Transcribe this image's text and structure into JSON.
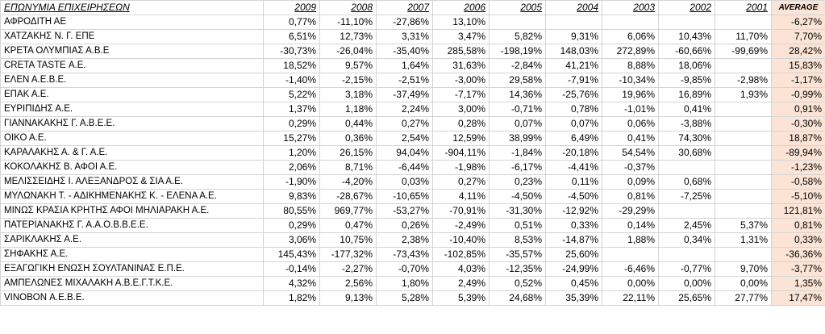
{
  "header": {
    "name": "ΕΠΩΝΥΜΙΑ ΕΠΙΧΕΙΡΗΣΕΩΝ",
    "years": [
      "2009",
      "2008",
      "2007",
      "2006",
      "2005",
      "2004",
      "2003",
      "2002",
      "2001"
    ],
    "average": "AVERAGE"
  },
  "rows": [
    {
      "name": "ΑΦΡΟΔΙΤΗ ΑΕ",
      "values": [
        "0,77%",
        "-11,10%",
        "-27,86%",
        "13,10%",
        "",
        "",
        "",
        "",
        ""
      ],
      "avg": "-6,27%"
    },
    {
      "name": "ΧΑΤΖΑΚΗΣ Ν. Γ. ΕΠΕ",
      "values": [
        "6,51%",
        "12,73%",
        "3,31%",
        "3,47%",
        "5,82%",
        "9,31%",
        "6,06%",
        "10,43%",
        "11,70%"
      ],
      "avg": "7,70%"
    },
    {
      "name": "ΚΡΕΤΑ ΟΛΥΜΠΙΑΣ Α.Β.Ε",
      "values": [
        "-30,73%",
        "-26,04%",
        "-35,40%",
        "285,58%",
        "-198,19%",
        "148,03%",
        "272,89%",
        "-60,66%",
        "-99,69%"
      ],
      "avg": "28,42%"
    },
    {
      "name": "CRETA TASTE Α.Ε.",
      "values": [
        "18,52%",
        "9,57%",
        "1,64%",
        "31,63%",
        "-2,84%",
        "41,21%",
        "8,88%",
        "18,06%",
        ""
      ],
      "avg": "15,83%"
    },
    {
      "name": "ΕΛΕΝ Α.Ε.Β.Ε.",
      "values": [
        "-1,40%",
        "-2,15%",
        "-2,51%",
        "-3,00%",
        "29,58%",
        "-7,91%",
        "-10,34%",
        "-9,85%",
        "-2,98%"
      ],
      "avg": "-1,17%"
    },
    {
      "name": "ΕΠΑΚ Α.Ε.",
      "values": [
        "5,22%",
        "3,18%",
        "-37,49%",
        "-7,17%",
        "14,36%",
        "-25,76%",
        "19,96%",
        "16,89%",
        "1,93%"
      ],
      "avg": "-0,99%"
    },
    {
      "name": "ΕΥΡΙΠΙΔΗΣ Α.Ε.",
      "values": [
        "1,37%",
        "1,18%",
        "2,24%",
        "3,00%",
        "-0,71%",
        "0,78%",
        "-1,01%",
        "0,41%",
        ""
      ],
      "avg": "0,91%"
    },
    {
      "name": "ΓΙΑΝΝΑΚΑΚΗΣ Γ. Α.Β.Ε.Ε.",
      "values": [
        "0,29%",
        "0,44%",
        "0,27%",
        "0,28%",
        "0,07%",
        "0,07%",
        "0,06%",
        "-3,88%",
        ""
      ],
      "avg": "-0,30%"
    },
    {
      "name": "ΟΙΚΟ Α.Ε.",
      "values": [
        "15,27%",
        "0,36%",
        "2,54%",
        "12,59%",
        "38,99%",
        "6,49%",
        "0,41%",
        "74,30%",
        ""
      ],
      "avg": "18,87%"
    },
    {
      "name": "ΚΑΡΑΛΑΚΗΣ Α. & Γ. Α.Ε.",
      "values": [
        "1,20%",
        "26,15%",
        "94,04%",
        "-904,11%",
        "-1,84%",
        "-20,18%",
        "54,54%",
        "30,68%",
        ""
      ],
      "avg": "-89,94%"
    },
    {
      "name": "ΚΟΚΟΛΑΚΗΣ Β. ΑΦΟΙ Α.Ε.",
      "values": [
        "2,06%",
        "8,71%",
        "-6,44%",
        "-1,98%",
        "-6,17%",
        "-4,41%",
        "-0,37%",
        "",
        ""
      ],
      "avg": "-1,23%"
    },
    {
      "name": "ΜΕΛΙΣΣΕΙΔΗΣ Ι. ΑΛΕΞΑΝΔΡΟΣ & ΣΙΑ Α.Ε.",
      "values": [
        "-1,90%",
        "-4,20%",
        "0,03%",
        "0,27%",
        "0,23%",
        "0,11%",
        "0,09%",
        "0,68%",
        ""
      ],
      "avg": "-0,58%"
    },
    {
      "name": "ΜΥΛΩΝΑΚΗ Τ. - ΑΔΙΚΗΜΕΝΑΚΗΣ Κ. - ΕΛΕΝΑ Α.Ε.",
      "values": [
        "9,83%",
        "-28,67%",
        "-10,65%",
        "4,11%",
        "-4,50%",
        "-4,50%",
        "0,81%",
        "-7,25%",
        ""
      ],
      "avg": "-5,10%"
    },
    {
      "name": "ΜΙΝΩΣ ΚΡΑΣΙΑ ΚΡΗΤΗΣ ΑΦΟΙ ΜΗΛΙΑΡΑΚΗ Α.Ε.",
      "values": [
        "80,55%",
        "969,77%",
        "-53,27%",
        "-70,91%",
        "-31,30%",
        "-12,92%",
        "-29,29%",
        "",
        ""
      ],
      "avg": "121,81%"
    },
    {
      "name": "ΠΑΤΕΡΙΑΝΑΚΗΣ Γ. Α.Α.Ο.Β.Β.Ε.Ε.",
      "values": [
        "0,29%",
        "0,47%",
        "0,26%",
        "-2,49%",
        "0,51%",
        "0,33%",
        "0,14%",
        "2,45%",
        "5,37%"
      ],
      "avg": "0,81%"
    },
    {
      "name": "ΣΑΡΙΚΛΑΚΗΣ Α.Ε.",
      "values": [
        "3,06%",
        "10,75%",
        "2,38%",
        "-10,40%",
        "8,53%",
        "-14,87%",
        "1,88%",
        "0,34%",
        "1,31%"
      ],
      "avg": "0,33%"
    },
    {
      "name": "ΣΗΦΑΚΗΣ Α.Ε.",
      "values": [
        "145,43%",
        "-177,32%",
        "-73,43%",
        "-102,85%",
        "-35,57%",
        "25,60%",
        "",
        "",
        ""
      ],
      "avg": "-36,36%"
    },
    {
      "name": "ΕΞΑΓΩΓΙΚΗ ΕΝΩΣΗ ΣΟΥΛΤΑΝΙΝΑΣ Ε.Π.Ε.",
      "values": [
        "-0,14%",
        "-2,27%",
        "-0,70%",
        "4,03%",
        "-12,35%",
        "-24,99%",
        "-6,46%",
        "-0,77%",
        "9,70%"
      ],
      "avg": "-3,77%"
    },
    {
      "name": "ΑΜΠΕΛΩΝΕΣ ΜΙΧΑΛΑΚΗ Α.Β.Ε.Γ.Τ.Κ.Ε.",
      "values": [
        "4,32%",
        "2,56%",
        "1,80%",
        "2,49%",
        "0,52%",
        "0,45%",
        "0,00%",
        "0,00%",
        "0,00%"
      ],
      "avg": "1,35%"
    },
    {
      "name": "VINOBON Α.Ε.Β.Ε.",
      "values": [
        "1,82%",
        "9,13%",
        "5,28%",
        "5,39%",
        "24,68%",
        "35,39%",
        "22,11%",
        "25,65%",
        "27,77%"
      ],
      "avg": "17,47%"
    }
  ]
}
